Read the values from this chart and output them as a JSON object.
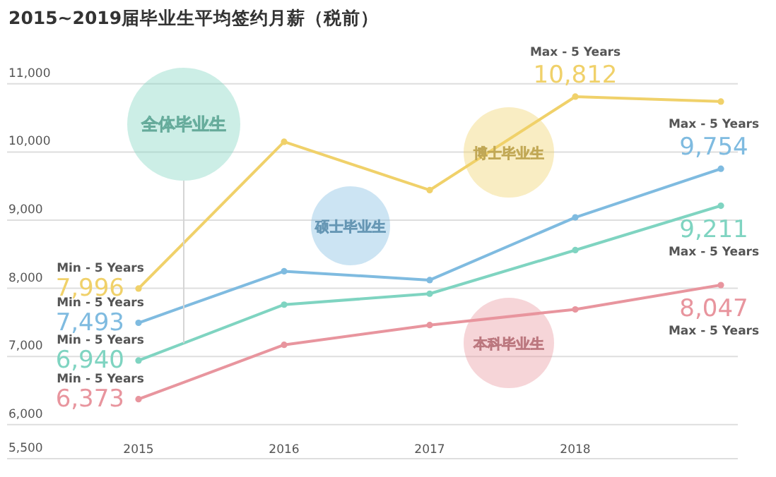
{
  "chart_data": {
    "type": "line",
    "title": "2015~2019届毕业生平均签约月薪（税前）",
    "categories": [
      "2015",
      "2016",
      "2017",
      "2018",
      null
    ],
    "ylim": [
      5500,
      11000
    ],
    "yticks": [
      {
        "value": 5500,
        "label": "5,500"
      },
      {
        "value": 6000,
        "label": "6,000"
      },
      {
        "value": 7000,
        "label": "7,000"
      },
      {
        "value": 8000,
        "label": "8,000"
      },
      {
        "value": 9000,
        "label": "9,000"
      },
      {
        "value": 10000,
        "label": "10,000"
      },
      {
        "value": 11000,
        "label": "11,000"
      }
    ],
    "grid": "y",
    "marker": "circle",
    "series": [
      {
        "name": "博士毕业生",
        "color": "#f0d16a",
        "values": [
          7996,
          10150,
          9440,
          10812,
          10740
        ],
        "value_labels": [
          "7,996",
          null,
          null,
          "10,812",
          null
        ]
      },
      {
        "name": "硕士毕业生",
        "color": "#7fbbe0",
        "values": [
          7493,
          8250,
          8120,
          9040,
          9754
        ],
        "value_labels": [
          "7,493",
          null,
          null,
          null,
          "9,754"
        ]
      },
      {
        "name": "全体毕业生",
        "color": "#7fd4c1",
        "values": [
          6940,
          7760,
          7920,
          8560,
          9211
        ],
        "value_labels": [
          "6,940",
          null,
          null,
          null,
          "9,211"
        ]
      },
      {
        "name": "本科毕业生",
        "color": "#e8959e",
        "values": [
          6373,
          7170,
          7460,
          7690,
          8047
        ],
        "value_labels": [
          "6,373",
          null,
          null,
          null,
          "8,047"
        ]
      }
    ],
    "annotations": [
      {
        "text": "Min - 5 Years",
        "x": "2015",
        "y": 7996
      },
      {
        "text": "Min - 5 Years",
        "x": "2015",
        "y": 7493
      },
      {
        "text": "Min - 5 Years",
        "x": "2015",
        "y": 6940
      },
      {
        "text": "Min - 5 Years",
        "x": "2015",
        "y": 6373
      },
      "Max - 5 Years",
      "Max - 5 Years",
      "Max - 5 Years",
      "Max - 5 Years"
    ]
  }
}
